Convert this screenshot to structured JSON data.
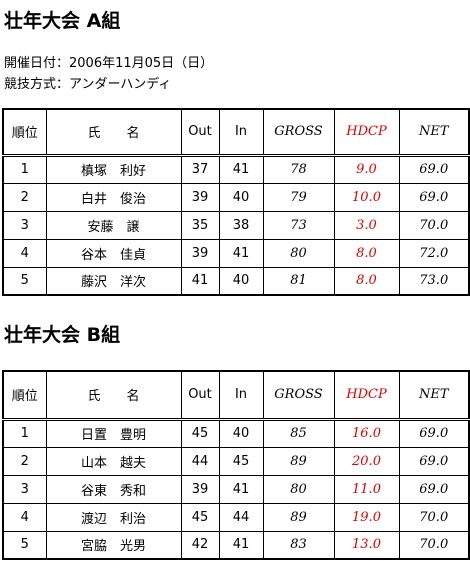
{
  "info": [
    "開催日付：2006年11月05日（日）",
    "競技方式：アンダーハンディ"
  ],
  "sections": [
    {
      "title": "壮年大会 A組",
      "table": {
        "header": [
          "順位",
          "氏　　名",
          "Out",
          "In",
          "GROSS",
          "HDCP",
          "NET"
        ],
        "rows": [
          [
            "1",
            "槙塚　利好",
            "37",
            "41",
            "78",
            "9.0",
            "69.0"
          ],
          [
            "2",
            "白井　俊治",
            "39",
            "40",
            "79",
            "10.0",
            "69.0"
          ],
          [
            "3",
            "安藤　譲",
            "35",
            "38",
            "73",
            "3.0",
            "70.0"
          ],
          [
            "4",
            "谷本　佳貞",
            "39",
            "41",
            "80",
            "8.0",
            "72.0"
          ],
          [
            "5",
            "藤沢　洋次",
            "41",
            "40",
            "81",
            "8.0",
            "73.0"
          ]
        ]
      }
    },
    {
      "title": "壮年大会 B組",
      "table": {
        "header": [
          "順位",
          "氏　　名",
          "Out",
          "In",
          "GROSS",
          "HDCP",
          "NET"
        ],
        "rows": [
          [
            "1",
            "日置　豊明",
            "45",
            "40",
            "85",
            "16.0",
            "69.0"
          ],
          [
            "2",
            "山本　越夫",
            "44",
            "45",
            "89",
            "20.0",
            "69.0"
          ],
          [
            "3",
            "谷東　秀和",
            "39",
            "41",
            "80",
            "11.0",
            "69.0"
          ],
          [
            "4",
            "渡辺　利治",
            "45",
            "44",
            "89",
            "19.0",
            "70.0"
          ],
          [
            "5",
            "宮脇　光男",
            "42",
            "41",
            "83",
            "13.0",
            "70.0"
          ]
        ]
      }
    }
  ]
}
